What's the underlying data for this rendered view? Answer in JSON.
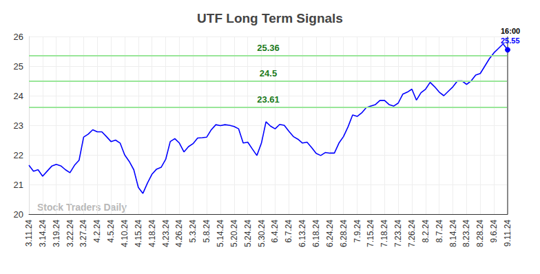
{
  "chart_data": {
    "type": "line",
    "title": "UTF Long Term Signals",
    "watermark": "Stock Traders Daily",
    "end_time": "16:00",
    "hlines": [
      25.36,
      24.5,
      23.61
    ],
    "color": "#0000ff",
    "grid": true,
    "ylim": [
      20,
      26
    ],
    "yticks": [
      20,
      21,
      22,
      23,
      24,
      25,
      26
    ],
    "categories": [
      "3.11.24",
      null,
      null,
      "3.14.24",
      null,
      null,
      "3.19.24",
      null,
      null,
      "3.22.24",
      null,
      null,
      "3.27.24",
      null,
      null,
      "4.2.24",
      null,
      null,
      "4.5.24",
      null,
      null,
      "4.10.24",
      null,
      null,
      "4.15.24",
      null,
      null,
      "4.18.24",
      null,
      null,
      "4.23.24",
      null,
      null,
      "4.26.24",
      null,
      null,
      "5.3.24",
      null,
      null,
      "5.8.24",
      null,
      null,
      "5.14.24",
      null,
      null,
      "5.20.24",
      null,
      null,
      "5.24.24",
      null,
      null,
      "5.30.24",
      null,
      null,
      "6.4.24",
      null,
      null,
      "6.7.24",
      null,
      null,
      "6.13.24",
      null,
      null,
      "6.18.24",
      null,
      null,
      "6.24.24",
      null,
      null,
      "6.28.24",
      null,
      null,
      "7.9.24",
      null,
      null,
      "7.15.24",
      null,
      null,
      "7.18.24",
      null,
      null,
      "7.23.24",
      null,
      null,
      "7.26.24",
      null,
      null,
      "8.2.24",
      null,
      null,
      "8.7.24",
      null,
      null,
      "8.14.24",
      null,
      null,
      "8.23.24",
      null,
      null,
      "8.28.24",
      null,
      null,
      "9.6.24",
      null,
      null,
      "9.11.24"
    ],
    "values": [
      21.65,
      21.45,
      21.5,
      21.28,
      21.45,
      21.62,
      21.68,
      21.63,
      21.5,
      21.4,
      21.65,
      21.82,
      22.6,
      22.7,
      22.85,
      22.78,
      22.78,
      22.62,
      22.45,
      22.5,
      22.4,
      22.0,
      21.78,
      21.5,
      20.9,
      20.7,
      21.05,
      21.35,
      21.52,
      21.58,
      21.85,
      22.45,
      22.55,
      22.4,
      22.1,
      22.28,
      22.38,
      22.57,
      22.58,
      22.6,
      22.85,
      23.02,
      22.99,
      23.02,
      23.0,
      22.96,
      22.88,
      22.4,
      22.43,
      22.2,
      21.98,
      22.4,
      23.12,
      22.97,
      22.88,
      23.03,
      23.0,
      22.8,
      22.62,
      22.53,
      22.4,
      22.43,
      22.25,
      22.05,
      21.98,
      22.08,
      22.06,
      22.06,
      22.4,
      22.62,
      22.95,
      23.35,
      23.3,
      23.42,
      23.6,
      23.65,
      23.7,
      23.84,
      23.84,
      23.7,
      23.65,
      23.75,
      24.05,
      24.12,
      24.22,
      23.85,
      24.1,
      24.22,
      24.45,
      24.3,
      24.12,
      24.0,
      24.15,
      24.3,
      24.5,
      24.5,
      24.38,
      24.5,
      24.7,
      24.75,
      25.0,
      25.25,
      25.45,
      25.6,
      25.75,
      25.55
    ]
  }
}
